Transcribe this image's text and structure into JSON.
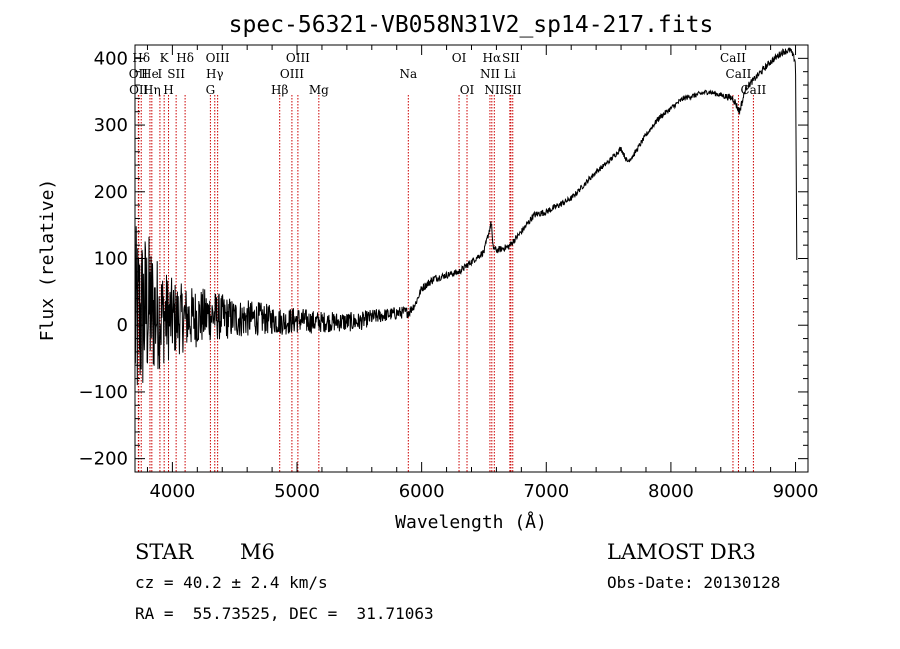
{
  "chart_data": {
    "type": "line",
    "title": "spec-56321-VB058N31V2_sp14-217.fits",
    "xlabel": "Wavelength (Å)",
    "ylabel": "Flux (relative)",
    "xlim": [
      3700,
      9100
    ],
    "ylim": [
      -220,
      420
    ],
    "x_ticks": [
      4000,
      5000,
      6000,
      7000,
      8000,
      9000
    ],
    "y_ticks": [
      -200,
      -100,
      0,
      100,
      200,
      300,
      400
    ],
    "x_tick_labels": [
      "4000",
      "5000",
      "6000",
      "7000",
      "8000",
      "9000"
    ],
    "y_tick_labels": [
      "−200",
      "−100",
      "0",
      "100",
      "200",
      "300",
      "400"
    ],
    "series": [
      {
        "name": "flux",
        "x": [
          3700,
          3800,
          3900,
          4000,
          4100,
          4200,
          4300,
          4400,
          4500,
          4600,
          4700,
          4800,
          4900,
          5000,
          5100,
          5200,
          5300,
          5400,
          5500,
          5600,
          5700,
          5800,
          5900,
          5950,
          6000,
          6100,
          6200,
          6300,
          6400,
          6500,
          6560,
          6570,
          6600,
          6700,
          6800,
          6900,
          7000,
          7100,
          7200,
          7300,
          7400,
          7500,
          7600,
          7650,
          7700,
          7800,
          7900,
          8000,
          8100,
          8200,
          8300,
          8400,
          8500,
          8550,
          8600,
          8700,
          8800,
          8900,
          8960,
          9000,
          9010
        ],
        "y": [
          0,
          25,
          15,
          10,
          10,
          12,
          15,
          12,
          10,
          10,
          10,
          8,
          5,
          8,
          5,
          5,
          5,
          5,
          5,
          12,
          15,
          18,
          20,
          32,
          55,
          70,
          75,
          80,
          95,
          110,
          155,
          118,
          112,
          118,
          140,
          165,
          170,
          180,
          190,
          210,
          230,
          245,
          265,
          245,
          255,
          285,
          310,
          325,
          340,
          345,
          350,
          345,
          340,
          320,
          355,
          375,
          395,
          410,
          412,
          395,
          100
        ],
        "noise_amplitude": [
          150,
          120,
          80,
          60,
          50,
          45,
          40,
          35,
          30,
          28,
          25,
          22,
          20,
          20,
          18,
          16,
          15,
          15,
          14,
          12,
          10,
          10,
          8,
          6,
          6,
          6,
          5,
          5,
          5,
          5,
          5,
          5,
          5,
          5,
          5,
          5,
          5,
          5,
          4,
          4,
          4,
          4,
          4,
          4,
          4,
          4,
          4,
          4,
          4,
          4,
          4,
          4,
          6,
          6,
          5,
          5,
          5,
          5,
          5,
          5,
          5
        ]
      }
    ],
    "line_color": "#000000",
    "marker_color": "#cc0000",
    "spectral_lines": [
      {
        "label": "Hδ",
        "wavelength": 3750,
        "row": 0
      },
      {
        "label": "OII",
        "wavelength": 3727,
        "row": 1
      },
      {
        "label": "OII",
        "wavelength": 3730,
        "row": 2
      },
      {
        "label": "He",
        "wavelength": 3820,
        "row": 1
      },
      {
        "label": "Hη",
        "wavelength": 3835,
        "row": 2
      },
      {
        "label": "K",
        "wavelength": 3934,
        "row": 0
      },
      {
        "label": "I",
        "wavelength": 3900,
        "row": 1
      },
      {
        "label": "H",
        "wavelength": 3969,
        "row": 2
      },
      {
        "label": "SII",
        "wavelength": 4030,
        "row": 1
      },
      {
        "label": "Hδ",
        "wavelength": 4102,
        "row": 0
      },
      {
        "label": "OIII",
        "wavelength": 4363,
        "row": 0
      },
      {
        "label": "Hγ",
        "wavelength": 4340,
        "row": 1
      },
      {
        "label": "G",
        "wavelength": 4305,
        "row": 2
      },
      {
        "label": "Hβ",
        "wavelength": 4861,
        "row": 2
      },
      {
        "label": "OIII",
        "wavelength": 4959,
        "row": 1
      },
      {
        "label": "OIII",
        "wavelength": 5007,
        "row": 0
      },
      {
        "label": "Mg",
        "wavelength": 5175,
        "row": 2
      },
      {
        "label": "Na",
        "wavelength": 5893,
        "row": 1
      },
      {
        "label": "OI",
        "wavelength": 6300,
        "row": 0
      },
      {
        "label": "OI",
        "wavelength": 6364,
        "row": 2
      },
      {
        "label": "Hα",
        "wavelength": 6563,
        "row": 0
      },
      {
        "label": "NII",
        "wavelength": 6548,
        "row": 1
      },
      {
        "label": "NII",
        "wavelength": 6583,
        "row": 2
      },
      {
        "label": "Li",
        "wavelength": 6708,
        "row": 1
      },
      {
        "label": "SII",
        "wavelength": 6716,
        "row": 0
      },
      {
        "label": "SII",
        "wavelength": 6731,
        "row": 2
      },
      {
        "label": "CaII",
        "wavelength": 8498,
        "row": 0
      },
      {
        "label": "CaII",
        "wavelength": 8542,
        "row": 1
      },
      {
        "label": "CaII",
        "wavelength": 8662,
        "row": 2
      }
    ]
  },
  "info": {
    "object_type": "STAR",
    "subclass": "M6",
    "survey": "LAMOST DR3",
    "redshift": "cz = 40.2 ± 2.4 km/s",
    "obs_date": "Obs-Date: 20130128",
    "coords": "RA =  55.73525, DEC =  31.71063"
  }
}
